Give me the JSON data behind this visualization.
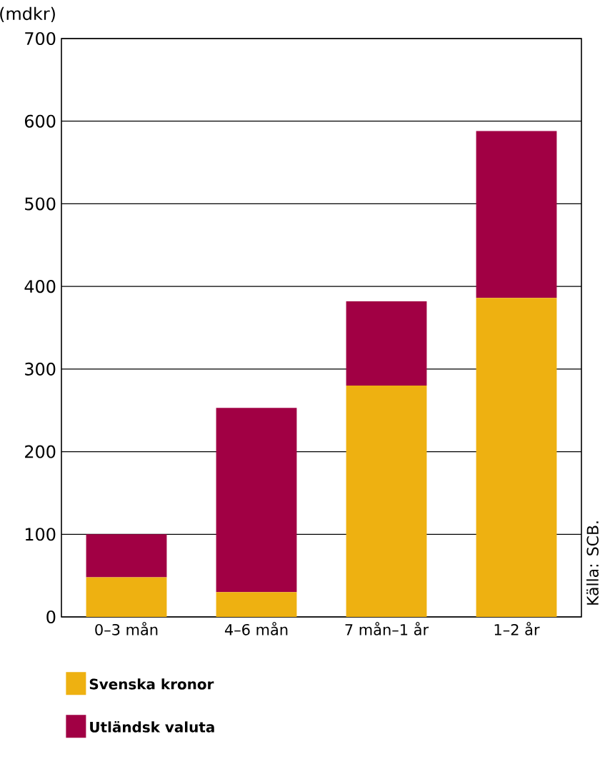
{
  "chart_data": {
    "type": "bar",
    "stacked": true,
    "ylabel": "(mdkr)",
    "categories": [
      "0–3 mån",
      "4–6 mån",
      "7 mån–1 år",
      "1–2 år"
    ],
    "series": [
      {
        "name": "Svenska kronor",
        "color": "#eeb111",
        "values": [
          48,
          30,
          280,
          386
        ]
      },
      {
        "name": "Utländsk valuta",
        "color": "#a10044",
        "values": [
          52,
          223,
          102,
          202
        ]
      }
    ],
    "ylim": [
      0,
      700
    ],
    "yticks": [
      0,
      100,
      200,
      300,
      400,
      500,
      600,
      700
    ],
    "grid": "y",
    "legend": "bottom",
    "annotations": [
      "Källa: SCB."
    ]
  }
}
